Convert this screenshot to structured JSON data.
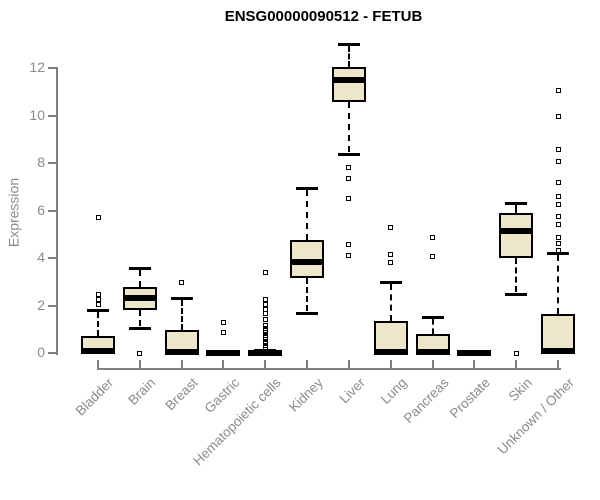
{
  "title": "ENSG00000090512 - FETUB",
  "chart_data": {
    "type": "boxplot",
    "title": "ENSG00000090512 - FETUB",
    "ylabel": "Expression",
    "xlabel": "",
    "yticks": [
      0,
      2,
      4,
      6,
      8,
      10,
      12
    ],
    "ylim": [
      0,
      13.2
    ],
    "grid": false,
    "legend": "none",
    "categories": [
      "Bladder",
      "Brain",
      "Breast",
      "Gastric",
      "Hematopoietic cells",
      "Kidney",
      "Liver",
      "Lung",
      "Pancreas",
      "Prostate",
      "Skin",
      "Unknown / Other"
    ],
    "series": [
      {
        "name": "Bladder",
        "whislo": 0,
        "q1": 0,
        "med": 0.08,
        "q3": 0.72,
        "whishi": 1.8,
        "outliers": [
          2.45,
          2.25,
          2.05,
          5.7
        ]
      },
      {
        "name": "Brain",
        "whislo": 1.05,
        "q1": 1.8,
        "med": 2.3,
        "q3": 2.8,
        "whishi": 3.6,
        "outliers": [
          0.0
        ]
      },
      {
        "name": "Breast",
        "whislo": 0,
        "q1": 0,
        "med": 0.06,
        "q3": 0.95,
        "whishi": 2.3,
        "outliers": [
          2.95
        ]
      },
      {
        "name": "Gastric",
        "whislo": 0,
        "q1": 0,
        "med": 0.02,
        "q3": 0.05,
        "whishi": 0.05,
        "outliers": [
          1.3,
          0.85
        ]
      },
      {
        "name": "Hematopoietic cells",
        "whislo": 0,
        "q1": 0,
        "med": 0.02,
        "q3": 0.06,
        "whishi": 0.12,
        "outliers": [
          3.4,
          2.25,
          2.05,
          1.85,
          1.65,
          1.4,
          1.15,
          1.05,
          0.95,
          0.85,
          0.75,
          0.65,
          0.55,
          0.45,
          0.38,
          0.3,
          0.22,
          0.15
        ]
      },
      {
        "name": "Kidney",
        "whislo": 1.7,
        "q1": 3.15,
        "med": 3.85,
        "q3": 4.75,
        "whishi": 6.95,
        "outliers": []
      },
      {
        "name": "Liver",
        "whislo": 8.4,
        "q1": 10.55,
        "med": 11.5,
        "q3": 12.05,
        "whishi": 13.0,
        "outliers": [
          7.8,
          7.35,
          6.5,
          4.55,
          4.1
        ]
      },
      {
        "name": "Lung",
        "whislo": 0,
        "q1": 0,
        "med": 0.06,
        "q3": 1.35,
        "whishi": 3.0,
        "outliers": [
          5.3,
          4.15,
          3.8
        ]
      },
      {
        "name": "Pancreas",
        "whislo": 0,
        "q1": 0,
        "med": 0.05,
        "q3": 0.8,
        "whishi": 1.5,
        "outliers": [
          4.85,
          4.05
        ]
      },
      {
        "name": "Prostate",
        "whislo": 0,
        "q1": 0,
        "med": 0.02,
        "q3": 0.05,
        "whishi": 0.05,
        "outliers": []
      },
      {
        "name": "Skin",
        "whislo": 2.5,
        "q1": 4.0,
        "med": 5.15,
        "q3": 5.9,
        "whishi": 6.3,
        "outliers": [
          0.0
        ]
      },
      {
        "name": "Unknown / Other",
        "whislo": 0,
        "q1": 0,
        "med": 0.08,
        "q3": 1.65,
        "whishi": 4.2,
        "outliers": [
          11.05,
          9.95,
          8.55,
          8.05,
          7.2,
          6.6,
          6.25,
          5.75,
          5.4,
          4.85,
          4.6,
          4.3
        ]
      }
    ],
    "colors": {
      "box_fill": "#ede6cb",
      "box_border": "#000000",
      "median": "#000000",
      "axis": "#808080",
      "tick_text": "#8b8b8b",
      "title_text": "#000000",
      "background": "#ffffff"
    }
  }
}
